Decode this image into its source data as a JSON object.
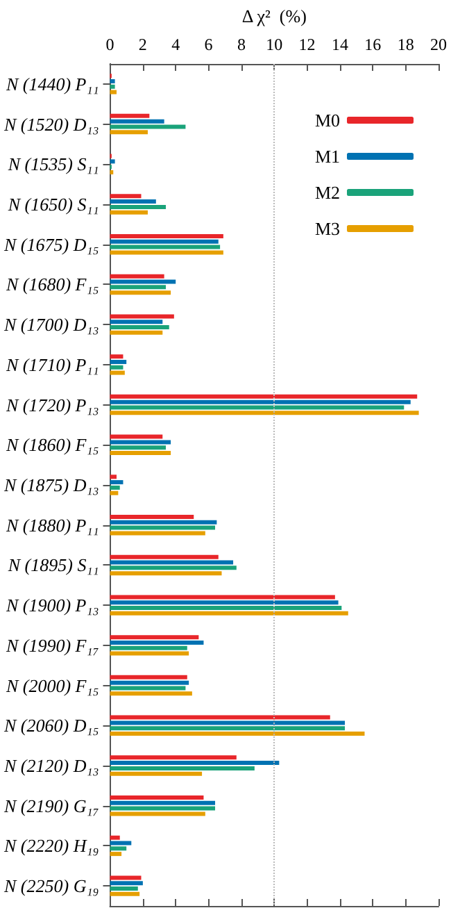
{
  "chart_data": {
    "type": "bar",
    "orientation": "horizontal",
    "xlabel": "Δ χ²  (%)",
    "categories": [
      "N (1440) P₁₁",
      "N (1520) D₁₃",
      "N (1535) S₁₁",
      "N (1650) S₁₁",
      "N (1675) D₁₅",
      "N (1680) F₁₅",
      "N (1700) D₁₃",
      "N (1710) P₁₁",
      "N (1720) P₁₃",
      "N (1860) F₁₅",
      "N (1875) D₁₃",
      "N (1880) P₁₁",
      "N (1895) S₁₁",
      "N (1900) P₁₃",
      "N (1990) F₁₇",
      "N (2000) F₁₅",
      "N (2060) D₁₅",
      "N (2120) D₁₃",
      "N (2190) G₁₇",
      "N (2220) H₁₉",
      "N (2250) G₁₉"
    ],
    "series": [
      {
        "name": "M0",
        "color": "#e8262a",
        "values": [
          0.1,
          2.4,
          0.1,
          1.9,
          6.9,
          3.3,
          3.9,
          0.8,
          18.7,
          3.2,
          0.4,
          5.1,
          6.6,
          13.7,
          5.4,
          4.7,
          13.4,
          7.7,
          5.7,
          0.6,
          1.9
        ]
      },
      {
        "name": "M1",
        "color": "#0072b2",
        "values": [
          0.3,
          3.3,
          0.3,
          2.8,
          6.6,
          4.0,
          3.2,
          1.0,
          18.3,
          3.7,
          0.8,
          6.5,
          7.5,
          13.9,
          5.7,
          4.8,
          14.3,
          10.3,
          6.4,
          1.3,
          2.0
        ]
      },
      {
        "name": "M2",
        "color": "#1aa37a",
        "values": [
          0.3,
          4.6,
          0.1,
          3.4,
          6.7,
          3.4,
          3.6,
          0.8,
          17.9,
          3.4,
          0.6,
          6.4,
          7.7,
          14.1,
          4.7,
          4.6,
          14.3,
          8.8,
          6.4,
          1.0,
          1.7
        ]
      },
      {
        "name": "M3",
        "color": "#e69f00",
        "values": [
          0.4,
          2.3,
          0.2,
          2.3,
          6.9,
          3.7,
          3.2,
          0.9,
          18.8,
          3.7,
          0.5,
          5.8,
          6.8,
          14.5,
          4.8,
          5.0,
          15.5,
          5.6,
          5.8,
          0.7,
          1.8
        ]
      }
    ],
    "xlim": [
      0,
      20
    ],
    "xticks": [
      0,
      2,
      4,
      6,
      8,
      10,
      12,
      14,
      16,
      18,
      20
    ],
    "ref_lines": [
      {
        "axis": "x",
        "value": 10,
        "color": "#bbbbbb",
        "line_style": "dotted"
      }
    ],
    "grid": false,
    "legend": "top right"
  }
}
